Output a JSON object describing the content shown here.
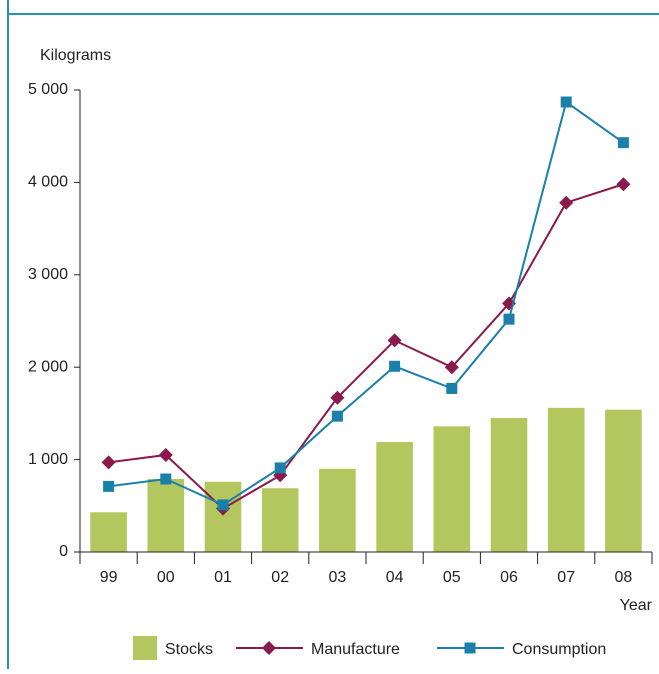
{
  "chart_data": {
    "type": "bar_line",
    "y_label": "Kilograms",
    "x_label": "Year",
    "categories": [
      "99",
      "00",
      "01",
      "02",
      "03",
      "04",
      "05",
      "06",
      "07",
      "08"
    ],
    "series": [
      {
        "name": "Stocks",
        "type": "bar",
        "color": "#b4c75e",
        "values": [
          430,
          790,
          760,
          690,
          900,
          1190,
          1360,
          1450,
          1560,
          1540
        ]
      },
      {
        "name": "Manufacture",
        "type": "line",
        "marker": "diamond",
        "color": "#8b1a4c",
        "values": [
          970,
          1050,
          470,
          830,
          1670,
          2290,
          2000,
          2690,
          3780,
          3980
        ]
      },
      {
        "name": "Consumption",
        "type": "line",
        "marker": "square",
        "color": "#1a80aa",
        "values": [
          710,
          790,
          510,
          910,
          1470,
          2010,
          1770,
          2520,
          4870,
          4430
        ]
      }
    ],
    "ylim": [
      0,
      5000
    ],
    "yticks": [
      0,
      {
        "value": 1000,
        "label": "1 000"
      },
      {
        "value": 2000,
        "label": "2 000"
      },
      {
        "value": 3000,
        "label": "3 000"
      },
      {
        "value": 4000,
        "label": "4 000"
      },
      {
        "value": 5000,
        "label": "5 000"
      }
    ],
    "legend": "bottom"
  }
}
